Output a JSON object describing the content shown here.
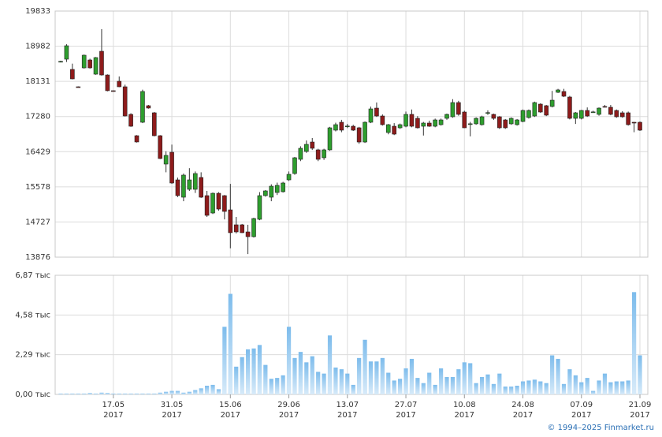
{
  "chart_data": {
    "type": "candlestick",
    "x": [
      "2017-05-03",
      "2017-05-04",
      "2017-05-05",
      "2017-05-08",
      "2017-05-10",
      "2017-05-11",
      "2017-05-12",
      "2017-05-15",
      "2017-05-16",
      "2017-05-17",
      "2017-05-18",
      "2017-05-19",
      "2017-05-22",
      "2017-05-23",
      "2017-05-24",
      "2017-05-25",
      "2017-05-26",
      "2017-05-29",
      "2017-05-30",
      "2017-05-31",
      "2017-06-01",
      "2017-06-02",
      "2017-06-05",
      "2017-06-06",
      "2017-06-07",
      "2017-06-08",
      "2017-06-09",
      "2017-06-13",
      "2017-06-14",
      "2017-06-15",
      "2017-06-16",
      "2017-06-19",
      "2017-06-20",
      "2017-06-21",
      "2017-06-22",
      "2017-06-23",
      "2017-06-26",
      "2017-06-27",
      "2017-06-28",
      "2017-06-29",
      "2017-06-30",
      "2017-07-03",
      "2017-07-04",
      "2017-07-05",
      "2017-07-06",
      "2017-07-07",
      "2017-07-10",
      "2017-07-11",
      "2017-07-12",
      "2017-07-13",
      "2017-07-14",
      "2017-07-17",
      "2017-07-18",
      "2017-07-19",
      "2017-07-20",
      "2017-07-21",
      "2017-07-24",
      "2017-07-25",
      "2017-07-26",
      "2017-07-27",
      "2017-07-28",
      "2017-07-31",
      "2017-08-01",
      "2017-08-02",
      "2017-08-03",
      "2017-08-04",
      "2017-08-07",
      "2017-08-08",
      "2017-08-09",
      "2017-08-10",
      "2017-08-11",
      "2017-08-14",
      "2017-08-15",
      "2017-08-16",
      "2017-08-17",
      "2017-08-18",
      "2017-08-21",
      "2017-08-22",
      "2017-08-23",
      "2017-08-24",
      "2017-08-25",
      "2017-08-28",
      "2017-08-29",
      "2017-08-30",
      "2017-08-31",
      "2017-09-01",
      "2017-09-04",
      "2017-09-05",
      "2017-09-06",
      "2017-09-07",
      "2017-09-08",
      "2017-09-11",
      "2017-09-12",
      "2017-09-13",
      "2017-09-14",
      "2017-09-15",
      "2017-09-18",
      "2017-09-19",
      "2017-09-20",
      "2017-09-21"
    ],
    "open": [
      18611,
      18668,
      18420,
      18000,
      18458,
      18649,
      18305,
      18859,
      18286,
      17905,
      18134,
      18000,
      17332,
      16816,
      17141,
      17542,
      17370,
      16816,
      16129,
      16415,
      15747,
      15327,
      15518,
      15518,
      15805,
      15365,
      14945,
      15422,
      15365,
      15021,
      14659,
      14659,
      14487,
      14372,
      14792,
      15365,
      15327,
      15441,
      15460,
      15747,
      15900,
      16244,
      16434,
      16663,
      16473,
      16282,
      16473,
      16950,
      17141,
      17045,
      17045,
      17007,
      16663,
      17141,
      17484,
      17293,
      16893,
      17045,
      17007,
      17045,
      17332,
      17236,
      17045,
      17122,
      17045,
      17083,
      17236,
      17274,
      17618,
      17389,
      17100,
      17103,
      17083,
      17370,
      17332,
      17274,
      17198,
      17103,
      17083,
      17160,
      17255,
      17293,
      17580,
      17542,
      17523,
      17866,
      17886,
      17752,
      17236,
      17236,
      17427,
      17389,
      17332,
      17523,
      17504,
      17427,
      17370,
      17370,
      17141,
      17141
    ],
    "high": [
      18630,
      19030,
      18560,
      18010,
      18780,
      18680,
      18720,
      19394,
      18300,
      17910,
      18250,
      18050,
      17360,
      16830,
      17930,
      17560,
      17390,
      16830,
      16440,
      16600,
      15800,
      15900,
      16030,
      15950,
      15930,
      15480,
      15440,
      15450,
      15380,
      15650,
      14850,
      14680,
      14660,
      14830,
      15450,
      15500,
      15640,
      15680,
      15700,
      15950,
      16300,
      16560,
      16700,
      16760,
      16500,
      16500,
      17030,
      17130,
      17200,
      17100,
      17080,
      17030,
      17160,
      17520,
      17620,
      17330,
      17100,
      17120,
      17110,
      17400,
      17450,
      17290,
      17150,
      17180,
      17230,
      17230,
      17350,
      17700,
      17660,
      17420,
      17150,
      17260,
      17300,
      17430,
      17350,
      17290,
      17220,
      17260,
      17220,
      17450,
      17450,
      17640,
      17600,
      17560,
      17900,
      17950,
      17950,
      17780,
      17390,
      17440,
      17500,
      17420,
      17500,
      17560,
      17560,
      17450,
      17410,
      17400,
      17150,
      17160
    ],
    "low": [
      18590,
      18600,
      18180,
      17990,
      18440,
      18440,
      18290,
      18270,
      17890,
      17895,
      17990,
      17280,
      17030,
      16650,
      17120,
      17470,
      16800,
      16250,
      15930,
      15650,
      15330,
      15230,
      15480,
      15430,
      15310,
      14850,
      14920,
      15000,
      14790,
      14090,
      14450,
      14460,
      13950,
      14350,
      14770,
      15340,
      15230,
      15380,
      15440,
      15720,
      15870,
      16200,
      16400,
      16470,
      16200,
      16230,
      16450,
      16920,
      16900,
      17000,
      16930,
      16620,
      16640,
      17120,
      17270,
      17060,
      16850,
      16830,
      16980,
      17020,
      17020,
      16990,
      16820,
      17030,
      17020,
      17060,
      17200,
      17250,
      17300,
      17000,
      16800,
      17080,
      17060,
      17320,
      17200,
      16980,
      16980,
      17080,
      17060,
      17140,
      17230,
      17270,
      17370,
      17290,
      17500,
      17850,
      17750,
      17210,
      17100,
      17210,
      17270,
      17370,
      17300,
      17500,
      17310,
      17250,
      17250,
      17060,
      16900,
      16930
    ],
    "close": [
      18615,
      18993,
      18191,
      17995,
      18764,
      18458,
      18707,
      18286,
      17905,
      17900,
      18000,
      17294,
      17045,
      16664,
      17886,
      17485,
      16816,
      16263,
      16339,
      15671,
      15365,
      15862,
      15747,
      15900,
      15327,
      14888,
      15422,
      15040,
      14983,
      14468,
      14487,
      14468,
      14372,
      14811,
      15365,
      15480,
      15594,
      15613,
      15671,
      15881,
      16282,
      16511,
      16606,
      16511,
      16244,
      16473,
      17007,
      17083,
      16950,
      17050,
      16950,
      16663,
      17141,
      17465,
      17293,
      17083,
      17083,
      16854,
      17083,
      17332,
      17045,
      17007,
      17122,
      17045,
      17198,
      17198,
      17332,
      17618,
      17332,
      17007,
      17105,
      17236,
      17274,
      17375,
      17236,
      17007,
      17007,
      17236,
      17198,
      17427,
      17427,
      17618,
      17389,
      17313,
      17675,
      17924,
      17771,
      17236,
      17370,
      17427,
      17293,
      17392,
      17484,
      17520,
      17332,
      17274,
      17274,
      17083,
      17138,
      16950
    ],
    "up_color": "#2e9e2e",
    "down_color": "#8e1b1b",
    "ylim": [
      13876,
      19833
    ],
    "yticks": [
      13876,
      14727,
      15578,
      16429,
      17280,
      18131,
      18982,
      19833
    ],
    "grid": true,
    "volume": {
      "type": "bar",
      "color": "#7dbcec",
      "values": [
        0.05,
        0.05,
        0.05,
        0.05,
        0.05,
        0.08,
        0.05,
        0.1,
        0.08,
        0.05,
        0.05,
        0.05,
        0.05,
        0.05,
        0.05,
        0.05,
        0.05,
        0.1,
        0.15,
        0.2,
        0.2,
        0.1,
        0.15,
        0.25,
        0.35,
        0.5,
        0.55,
        0.3,
        3.9,
        5.8,
        1.6,
        2.15,
        2.6,
        2.65,
        2.85,
        1.7,
        0.9,
        0.95,
        1.1,
        3.9,
        2.1,
        2.45,
        1.85,
        2.2,
        1.3,
        1.2,
        3.4,
        1.55,
        1.45,
        1.2,
        0.55,
        2.1,
        3.15,
        1.9,
        1.9,
        2.1,
        1.25,
        0.8,
        0.9,
        1.5,
        2.05,
        0.95,
        0.65,
        1.25,
        0.55,
        1.5,
        1.0,
        1.0,
        1.45,
        1.85,
        1.8,
        0.65,
        1.0,
        1.15,
        0.6,
        1.2,
        0.45,
        0.45,
        0.5,
        0.75,
        0.8,
        0.85,
        0.75,
        0.65,
        2.25,
        2.05,
        0.6,
        1.45,
        1.1,
        0.7,
        0.95,
        0.2,
        0.8,
        1.2,
        0.7,
        0.75,
        0.75,
        0.8,
        5.9,
        2.25
      ],
      "ylim": [
        0,
        6.87
      ],
      "yticks": [
        {
          "value": 0,
          "label": "0,00 тыс"
        },
        {
          "value": 2.29,
          "label": "2,29 тыс"
        },
        {
          "value": 4.58,
          "label": "4,58 тыс"
        },
        {
          "value": 6.87,
          "label": "6,87 тыс"
        }
      ]
    },
    "xticks": [
      {
        "value": "2017-05-17",
        "label": "17.05\n2017"
      },
      {
        "value": "2017-05-31",
        "label": "31.05\n2017"
      },
      {
        "value": "2017-06-15",
        "label": "15.06\n2017"
      },
      {
        "value": "2017-06-29",
        "label": "29.06\n2017"
      },
      {
        "value": "2017-07-13",
        "label": "13.07\n2017"
      },
      {
        "value": "2017-07-27",
        "label": "27.07\n2017"
      },
      {
        "value": "2017-08-10",
        "label": "10.08\n2017"
      },
      {
        "value": "2017-08-24",
        "label": "24.08\n2017"
      },
      {
        "value": "2017-09-07",
        "label": "07.09\n2017"
      },
      {
        "value": "2017-09-21",
        "label": "21.09\n2017"
      }
    ]
  },
  "footer": "© 1994–2025 Finmarket.ru"
}
